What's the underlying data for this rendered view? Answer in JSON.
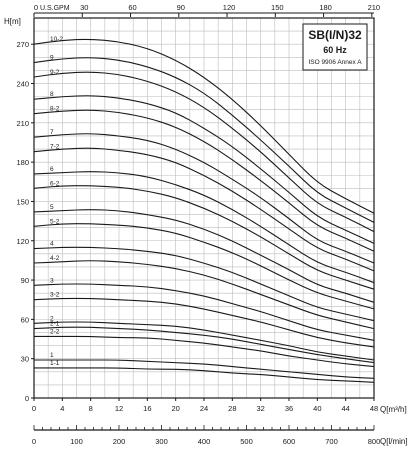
{
  "chart_data": {
    "type": "line",
    "title": "SB(I/N)32",
    "subtitle": "60 Hz",
    "standard": "ISO 9906 Annex A",
    "ylabel": "H[m]",
    "xlabel": "Q[m³/h]",
    "top_axis_label": "U.S.GPM",
    "bottom_axis_label": "Q[l/min]",
    "xlim": [
      0,
      48
    ],
    "ylim": [
      0,
      290
    ],
    "x_ticks": [
      0,
      4,
      8,
      12,
      16,
      20,
      24,
      28,
      32,
      36,
      40,
      44,
      48
    ],
    "y_ticks": [
      0,
      30,
      60,
      90,
      120,
      150,
      180,
      210,
      240,
      270
    ],
    "gpm_ticks": [
      0,
      30,
      60,
      90,
      120,
      150,
      180,
      210
    ],
    "lmin_ticks": [
      0,
      100,
      200,
      300,
      400,
      500,
      600,
      700,
      800
    ],
    "grid": true,
    "colors": {
      "curve": "#1a1a1a",
      "grid": "#bdbdbd",
      "frame": "#1a1a1a"
    },
    "series": [
      {
        "name": "10-2",
        "x": [
          0,
          4,
          8,
          12,
          16,
          20,
          24,
          28,
          32,
          36,
          40,
          44,
          48
        ],
        "values": [
          270,
          273,
          274,
          272,
          267,
          258,
          245,
          228,
          208,
          186,
          164,
          152,
          141
        ]
      },
      {
        "name": "9",
        "x": [
          0,
          4,
          8,
          12,
          16,
          20,
          24,
          28,
          32,
          36,
          40,
          44,
          48
        ],
        "values": [
          256,
          259,
          260,
          258,
          253,
          245,
          233,
          216,
          197,
          177,
          156,
          145,
          134
        ]
      },
      {
        "name": "9-2",
        "x": [
          0,
          4,
          8,
          12,
          16,
          20,
          24,
          28,
          32,
          36,
          40,
          44,
          48
        ],
        "values": [
          245,
          248,
          249,
          247,
          242,
          234,
          222,
          206,
          188,
          168,
          148,
          138,
          127
        ]
      },
      {
        "name": "8",
        "x": [
          0,
          4,
          8,
          12,
          16,
          20,
          24,
          28,
          32,
          36,
          40,
          44,
          48
        ],
        "values": [
          228,
          230,
          231,
          229,
          225,
          218,
          206,
          192,
          175,
          157,
          138,
          128,
          118
        ]
      },
      {
        "name": "8-2",
        "x": [
          0,
          4,
          8,
          12,
          16,
          20,
          24,
          28,
          32,
          36,
          40,
          44,
          48
        ],
        "values": [
          217,
          219,
          220,
          218,
          214,
          207,
          196,
          182,
          166,
          149,
          131,
          122,
          112
        ]
      },
      {
        "name": "7",
        "x": [
          0,
          4,
          8,
          12,
          16,
          20,
          24,
          28,
          32,
          36,
          40,
          44,
          48
        ],
        "values": [
          199,
          201,
          202,
          200,
          197,
          190,
          180,
          167,
          153,
          137,
          120,
          112,
          103
        ]
      },
      {
        "name": "7-2",
        "x": [
          0,
          4,
          8,
          12,
          16,
          20,
          24,
          28,
          32,
          36,
          40,
          44,
          48
        ],
        "values": [
          188,
          190,
          191,
          189,
          186,
          180,
          170,
          158,
          144,
          129,
          114,
          106,
          97
        ]
      },
      {
        "name": "6",
        "x": [
          0,
          4,
          8,
          12,
          16,
          20,
          24,
          28,
          32,
          36,
          40,
          44,
          48
        ],
        "values": [
          171,
          172,
          173,
          172,
          169,
          163,
          155,
          144,
          131,
          117,
          103,
          96,
          88
        ]
      },
      {
        "name": "6-2",
        "x": [
          0,
          4,
          8,
          12,
          16,
          20,
          24,
          28,
          32,
          36,
          40,
          44,
          48
        ],
        "values": [
          160,
          162,
          162,
          161,
          158,
          153,
          145,
          135,
          123,
          110,
          97,
          90,
          83
        ]
      },
      {
        "name": "5",
        "x": [
          0,
          4,
          8,
          12,
          16,
          20,
          24,
          28,
          32,
          36,
          40,
          44,
          48
        ],
        "values": [
          142,
          143,
          144,
          143,
          140,
          136,
          129,
          120,
          109,
          98,
          86,
          80,
          73
        ]
      },
      {
        "name": "5-2",
        "x": [
          0,
          4,
          8,
          12,
          16,
          20,
          24,
          28,
          32,
          36,
          40,
          44,
          48
        ],
        "values": [
          131,
          133,
          133,
          132,
          130,
          126,
          119,
          111,
          101,
          90,
          80,
          74,
          68
        ]
      },
      {
        "name": "4",
        "x": [
          0,
          4,
          8,
          12,
          16,
          20,
          24,
          28,
          32,
          36,
          40,
          44,
          48
        ],
        "values": [
          114,
          115,
          115,
          114,
          112,
          109,
          103,
          96,
          87,
          78,
          69,
          64,
          59
        ]
      },
      {
        "name": "4-2",
        "x": [
          0,
          4,
          8,
          12,
          16,
          20,
          24,
          28,
          32,
          36,
          40,
          44,
          48
        ],
        "values": [
          103,
          104,
          105,
          104,
          102,
          99,
          94,
          87,
          79,
          71,
          63,
          58,
          53
        ]
      },
      {
        "name": "3",
        "x": [
          0,
          4,
          8,
          12,
          16,
          20,
          24,
          28,
          32,
          36,
          40,
          44,
          48
        ],
        "values": [
          86,
          87,
          87,
          86,
          85,
          82,
          78,
          72,
          66,
          59,
          52,
          48,
          44
        ]
      },
      {
        "name": "3-2",
        "x": [
          0,
          4,
          8,
          12,
          16,
          20,
          24,
          28,
          32,
          36,
          40,
          44,
          48
        ],
        "values": [
          75,
          76,
          76,
          75,
          74,
          72,
          68,
          63,
          58,
          52,
          46,
          42,
          39
        ]
      },
      {
        "name": "2",
        "x": [
          0,
          4,
          8,
          12,
          16,
          20,
          24,
          28,
          32,
          36,
          40,
          44,
          48
        ],
        "values": [
          57,
          58,
          58,
          57,
          56,
          55,
          52,
          48,
          44,
          40,
          35,
          32,
          29
        ]
      },
      {
        "name": "2-1",
        "x": [
          0,
          4,
          8,
          12,
          16,
          20,
          24,
          28,
          32,
          36,
          40,
          44,
          48
        ],
        "values": [
          53,
          54,
          54,
          53,
          52,
          50,
          48,
          45,
          41,
          37,
          33,
          30,
          27
        ]
      },
      {
        "name": "2-2",
        "x": [
          0,
          4,
          8,
          12,
          16,
          20,
          24,
          28,
          32,
          36,
          40,
          44,
          48
        ],
        "values": [
          47,
          47,
          47,
          46,
          46,
          44,
          42,
          39,
          36,
          32,
          29,
          26,
          24
        ]
      },
      {
        "name": "1",
        "x": [
          0,
          4,
          8,
          12,
          16,
          20,
          24,
          28,
          32,
          36,
          40,
          44,
          48
        ],
        "values": [
          29,
          29,
          29,
          29,
          28,
          27,
          26,
          24,
          22,
          20,
          18,
          16,
          15
        ]
      },
      {
        "name": "1-1",
        "x": [
          0,
          4,
          8,
          12,
          16,
          20,
          24,
          28,
          32,
          36,
          40,
          44,
          48
        ],
        "values": [
          23,
          23,
          23,
          23,
          22,
          22,
          21,
          19,
          18,
          16,
          14,
          13,
          12
        ]
      }
    ]
  }
}
